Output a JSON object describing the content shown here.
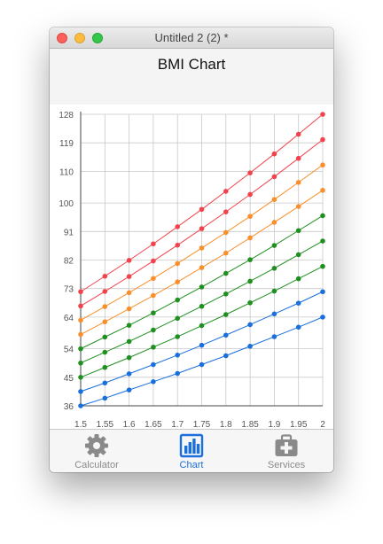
{
  "window": {
    "title": "Untitled 2 (2) *"
  },
  "page": {
    "title": "BMI Chart"
  },
  "colors": {
    "red": "#f2434d",
    "orange": "#f98f2a",
    "green": "#1f8f1f",
    "blue": "#1a6fdc",
    "tab_active": "#1a6fdc",
    "tab_inactive": "#8a8a8a"
  },
  "tabs": [
    {
      "label": "Calculator",
      "icon": "gear-icon",
      "active": false
    },
    {
      "label": "Chart",
      "icon": "bar-chart-icon",
      "active": true
    },
    {
      "label": "Services",
      "icon": "medical-kit-icon",
      "active": false
    }
  ],
  "chart_data": {
    "type": "line",
    "x": [
      1.5,
      1.55,
      1.6,
      1.65,
      1.7,
      1.75,
      1.8,
      1.85,
      1.9,
      1.95,
      2
    ],
    "x_tick_labels": [
      "1.5",
      "1.55",
      "1.6",
      "1.65",
      "1.7",
      "1.75",
      "1.8",
      "1.85",
      "1.9",
      "1.95",
      "2"
    ],
    "y_tick_values": [
      36,
      45,
      54,
      64,
      73,
      82,
      91,
      100,
      110,
      119,
      128
    ],
    "y_tick_labels": [
      "36",
      "45",
      "54",
      "64",
      "73",
      "82",
      "91",
      "100",
      "110",
      "119",
      "128"
    ],
    "xlim": [
      1.5,
      2
    ],
    "ylim": [
      36,
      128
    ],
    "grid": true,
    "series": [
      {
        "color": "#1a6fdc",
        "values": [
          36.0,
          38.4,
          41.0,
          43.6,
          46.2,
          49.0,
          51.8,
          54.8,
          57.8,
          60.8,
          64.0
        ]
      },
      {
        "color": "#1a6fdc",
        "values": [
          40.5,
          43.2,
          46.1,
          49.0,
          52.0,
          55.1,
          58.3,
          61.6,
          65.0,
          68.4,
          72.0
        ]
      },
      {
        "color": "#1f8f1f",
        "values": [
          45.0,
          48.1,
          51.2,
          54.5,
          57.8,
          61.3,
          64.8,
          68.5,
          72.2,
          76.1,
          80.0
        ]
      },
      {
        "color": "#1f8f1f",
        "values": [
          49.5,
          52.9,
          56.3,
          59.9,
          63.6,
          67.4,
          71.3,
          75.3,
          79.4,
          83.7,
          88.0
        ]
      },
      {
        "color": "#1f8f1f",
        "values": [
          54.0,
          57.7,
          61.4,
          65.3,
          69.4,
          73.5,
          77.8,
          82.1,
          86.6,
          91.3,
          96.0
        ]
      },
      {
        "color": "#f98f2a",
        "values": [
          58.5,
          62.5,
          66.6,
          70.8,
          75.1,
          79.6,
          84.2,
          89.0,
          93.9,
          98.9,
          104.0
        ]
      },
      {
        "color": "#f98f2a",
        "values": [
          63.0,
          67.3,
          71.7,
          76.2,
          80.9,
          85.8,
          90.7,
          95.8,
          101.1,
          106.5,
          112.0
        ]
      },
      {
        "color": "#f2434d",
        "values": [
          67.5,
          72.1,
          76.8,
          81.7,
          86.7,
          91.9,
          97.2,
          102.7,
          108.3,
          114.1,
          120.0
        ]
      },
      {
        "color": "#f2434d",
        "values": [
          72.0,
          76.9,
          81.9,
          87.1,
          92.5,
          98.0,
          103.7,
          109.5,
          115.5,
          121.7,
          128.0
        ]
      }
    ]
  }
}
